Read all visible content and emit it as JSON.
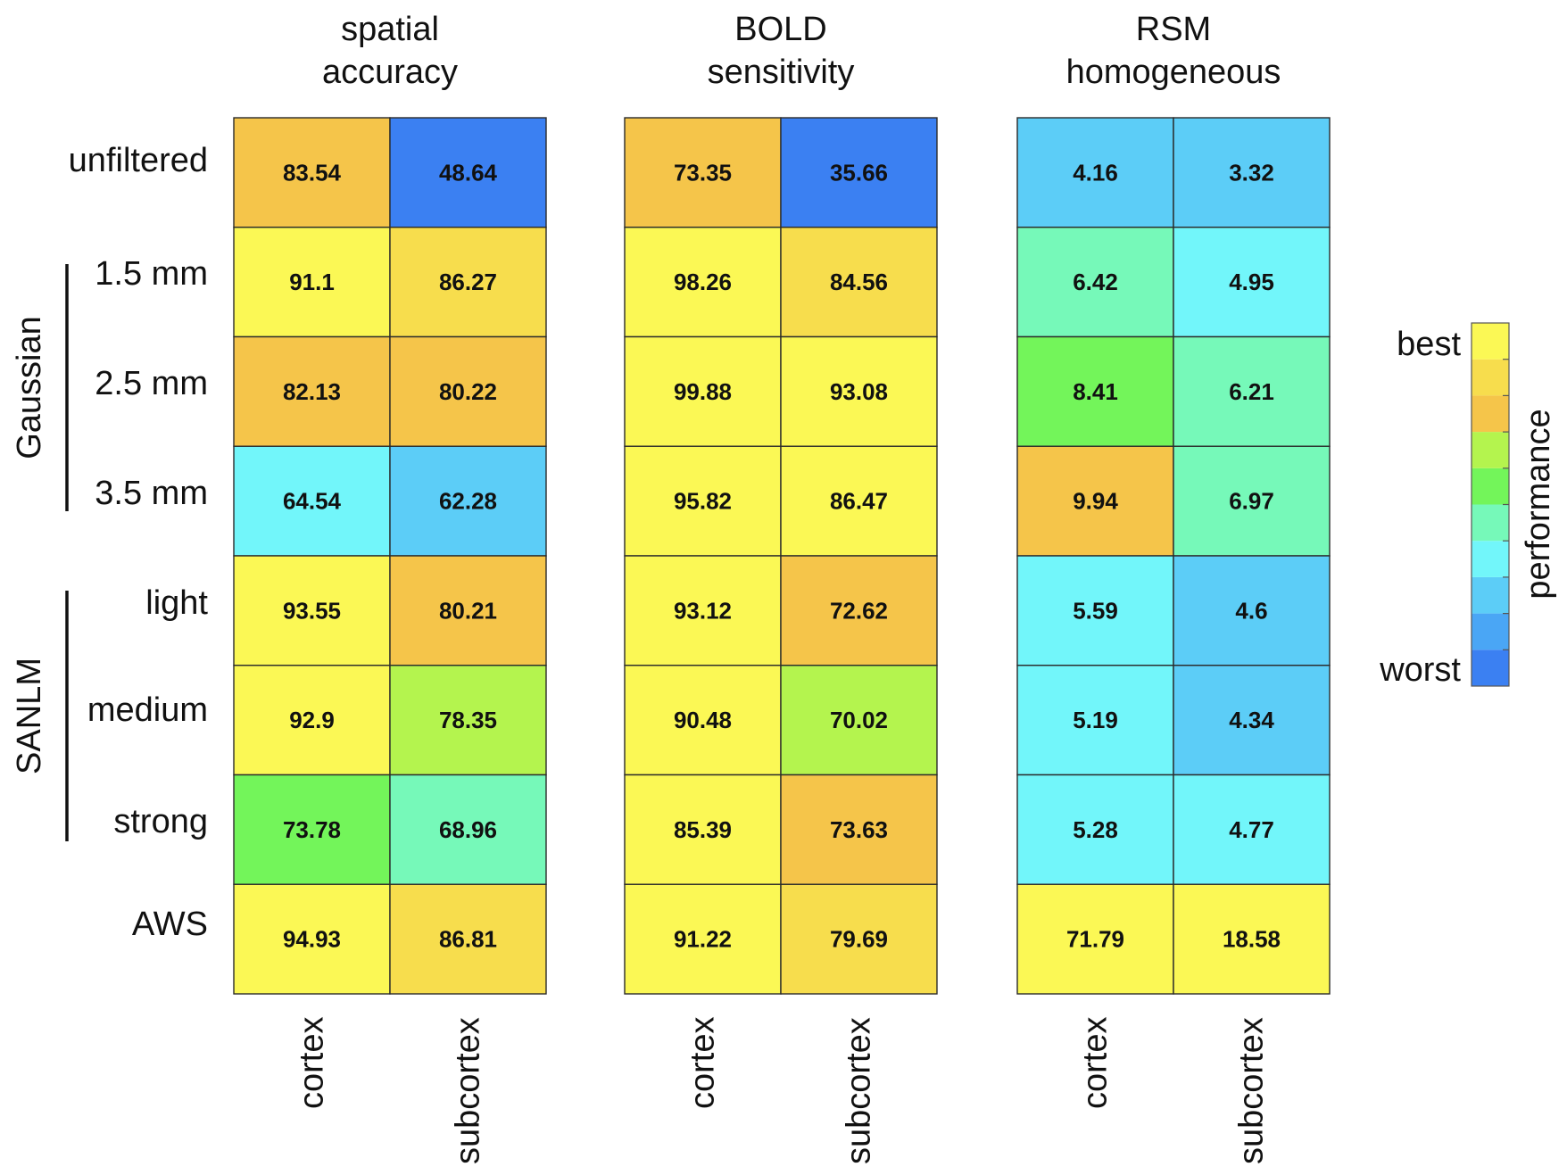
{
  "chart_data": {
    "type": "heatmap",
    "title": "",
    "row_labels": [
      "unfiltered",
      "1.5 mm",
      "2.5 mm",
      "3.5 mm",
      "light",
      "medium",
      "strong",
      "AWS"
    ],
    "row_groups": [
      {
        "label": "Gaussian",
        "rows": [
          "1.5 mm",
          "2.5 mm",
          "3.5 mm"
        ]
      },
      {
        "label": "SANLM",
        "rows": [
          "light",
          "medium",
          "strong"
        ]
      }
    ],
    "column_labels": [
      "cortex",
      "subcortex"
    ],
    "panels": [
      {
        "title_lines": [
          "spatial",
          "accuracy"
        ],
        "values": [
          [
            83.54,
            48.64
          ],
          [
            91.1,
            86.27
          ],
          [
            82.13,
            80.22
          ],
          [
            64.54,
            62.28
          ],
          [
            93.55,
            80.21
          ],
          [
            92.9,
            78.35
          ],
          [
            73.78,
            68.96
          ],
          [
            94.93,
            86.81
          ]
        ],
        "labels": [
          [
            "83.54",
            "48.64"
          ],
          [
            "91.1",
            "86.27"
          ],
          [
            "82.13",
            "80.22"
          ],
          [
            "64.54",
            "62.28"
          ],
          [
            "93.55",
            "80.21"
          ],
          [
            "92.9",
            "78.35"
          ],
          [
            "73.78",
            "68.96"
          ],
          [
            "94.93",
            "86.81"
          ]
        ],
        "levels": [
          [
            7,
            0
          ],
          [
            9,
            8
          ],
          [
            7,
            7
          ],
          [
            3,
            2
          ],
          [
            9,
            7
          ],
          [
            9,
            6
          ],
          [
            5,
            4
          ],
          [
            10,
            8
          ]
        ]
      },
      {
        "title_lines": [
          "BOLD",
          "sensitivity"
        ],
        "values": [
          [
            73.35,
            35.66
          ],
          [
            98.26,
            84.56
          ],
          [
            99.88,
            93.08
          ],
          [
            95.82,
            86.47
          ],
          [
            93.12,
            72.62
          ],
          [
            90.48,
            70.02
          ],
          [
            85.39,
            73.63
          ],
          [
            91.22,
            79.69
          ]
        ],
        "labels": [
          [
            "73.35",
            "35.66"
          ],
          [
            "98.26",
            "84.56"
          ],
          [
            "99.88",
            "93.08"
          ],
          [
            "95.82",
            "86.47"
          ],
          [
            "93.12",
            "72.62"
          ],
          [
            "90.48",
            "70.02"
          ],
          [
            "85.39",
            "73.63"
          ],
          [
            "91.22",
            "79.69"
          ]
        ],
        "levels": [
          [
            7,
            0
          ],
          [
            10,
            8
          ],
          [
            10,
            10
          ],
          [
            10,
            9
          ],
          [
            10,
            7
          ],
          [
            9,
            6
          ],
          [
            9,
            7
          ],
          [
            9,
            8
          ]
        ]
      },
      {
        "title_lines": [
          "RSM",
          "homogeneous"
        ],
        "values": [
          [
            4.16,
            3.32
          ],
          [
            6.42,
            4.95
          ],
          [
            8.41,
            6.21
          ],
          [
            9.94,
            6.97
          ],
          [
            5.59,
            4.6
          ],
          [
            5.19,
            4.34
          ],
          [
            5.28,
            4.77
          ],
          [
            71.79,
            18.58
          ]
        ],
        "labels": [
          [
            "4.16",
            "3.32"
          ],
          [
            "6.42",
            "4.95"
          ],
          [
            "8.41",
            "6.21"
          ],
          [
            "9.94",
            "6.97"
          ],
          [
            "5.59",
            "4.6"
          ],
          [
            "5.19",
            "4.34"
          ],
          [
            "5.28",
            "4.77"
          ],
          [
            "71.79",
            "18.58"
          ]
        ],
        "levels": [
          [
            2,
            2
          ],
          [
            4,
            3
          ],
          [
            5,
            4
          ],
          [
            7,
            4
          ],
          [
            3,
            2
          ],
          [
            3,
            2
          ],
          [
            3,
            3
          ],
          [
            10,
            10
          ]
        ]
      }
    ],
    "colorbar": {
      "label": "performance",
      "top_label": "best",
      "bottom_label": "worst",
      "colors_worst_to_best": [
        "#3b80f2",
        "#4aa6f5",
        "#5ccdf7",
        "#72f6fa",
        "#76f9b9",
        "#73f55a",
        "#b4f44e",
        "#f5c54a",
        "#f7dd4d",
        "#fbf855"
      ]
    }
  }
}
